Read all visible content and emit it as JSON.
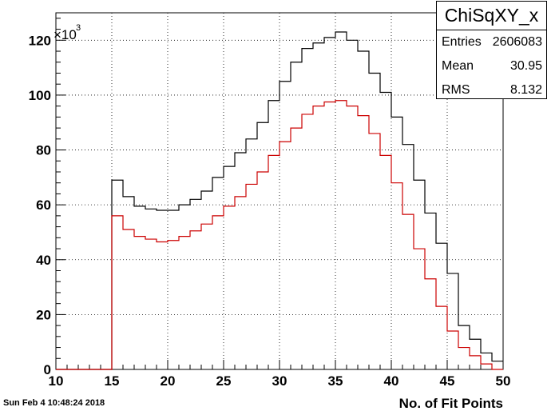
{
  "chart_data": {
    "type": "histogram",
    "title": "ChiSqXY_x",
    "xlabel": "No. of Fit Points",
    "ylabel": "",
    "y_multiplier_label": "×10^3",
    "xlim": [
      10,
      50
    ],
    "ylim": [
      0,
      130
    ],
    "grid": true,
    "x_ticks": [
      10,
      15,
      20,
      25,
      30,
      35,
      40,
      45,
      50
    ],
    "y_ticks": [
      0,
      20,
      40,
      60,
      80,
      100,
      120
    ],
    "bin_edges": [
      10,
      11,
      12,
      13,
      14,
      15,
      16,
      17,
      18,
      19,
      20,
      21,
      22,
      23,
      24,
      25,
      26,
      27,
      28,
      29,
      30,
      31,
      32,
      33,
      34,
      35,
      36,
      37,
      38,
      39,
      40,
      41,
      42,
      43,
      44,
      45,
      46,
      47,
      48,
      49,
      50
    ],
    "series": [
      {
        "color": "#000000",
        "values": [
          0,
          0,
          0,
          0,
          0,
          69,
          63,
          59.5,
          58.5,
          58,
          58,
          60,
          62,
          65,
          70,
          74,
          79,
          84,
          90,
          98,
          105,
          112,
          117,
          119,
          121,
          123,
          120,
          116,
          108,
          101,
          92,
          82,
          69,
          57,
          46,
          35,
          16,
          11,
          6,
          3
        ]
      },
      {
        "color": "#cc0000",
        "values": [
          0,
          0,
          0,
          0,
          0,
          56,
          51,
          48.5,
          47.5,
          46.5,
          47,
          48.5,
          50.5,
          53,
          56,
          59.5,
          63,
          67.5,
          72,
          78,
          83,
          88,
          93,
          96,
          97.5,
          98,
          96,
          92.5,
          86,
          78,
          68,
          56.5,
          44,
          33,
          23,
          14,
          8,
          5,
          2,
          0
        ]
      }
    ]
  },
  "stats": {
    "title": "ChiSqXY_x",
    "entries_label": "Entries",
    "entries_value": "2606083",
    "mean_label": "Mean",
    "mean_value": "30.95",
    "rms_label": "RMS",
    "rms_value": "8.132"
  },
  "footer": {
    "date": "Sun Feb  4 10:48:24 2018"
  }
}
